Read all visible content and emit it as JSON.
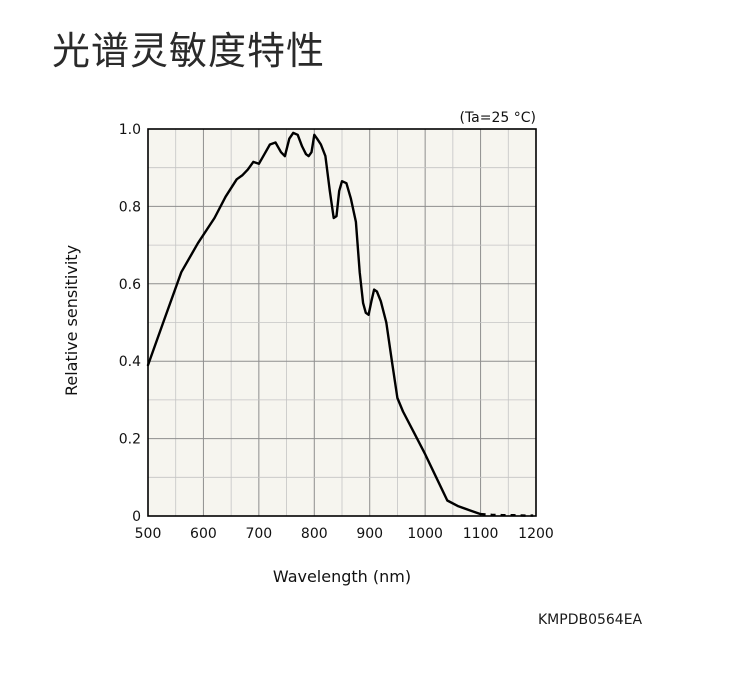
{
  "page": {
    "title": "光谱灵敏度特性",
    "figure_code": "KMPDB0564EA"
  },
  "chart_data": {
    "type": "line",
    "condition_note": "(Ta=25 °C)",
    "xlabel": "Wavelength (nm)",
    "ylabel": "Relative sensitivity",
    "xlim": [
      500,
      1200
    ],
    "ylim": [
      0,
      1.0
    ],
    "x_ticks": [
      500,
      600,
      700,
      800,
      900,
      1000,
      1100,
      1200
    ],
    "x_tick_labels": [
      "500",
      "600",
      "700",
      "800",
      "900",
      "1000",
      "1100",
      "1200"
    ],
    "y_ticks": [
      0,
      0.2,
      0.4,
      0.6,
      0.8,
      1.0
    ],
    "y_tick_labels": [
      "0",
      "0.2",
      "0.4",
      "0.6",
      "0.8",
      "1.0"
    ],
    "grid": true,
    "plot_background": "#f6f5ef",
    "line_color": "#000000",
    "series": [
      {
        "style": "solid",
        "x": [
          500,
          530,
          560,
          590,
          620,
          640,
          660,
          670,
          680,
          690,
          700,
          710,
          720,
          730,
          740,
          747,
          755,
          762,
          770,
          778,
          785,
          790,
          795,
          800,
          805,
          812,
          820,
          828,
          835,
          840,
          845,
          850,
          858,
          866,
          875,
          882,
          888,
          893,
          898,
          903,
          908,
          913,
          920,
          930,
          940,
          950,
          960,
          980,
          1000,
          1020,
          1040,
          1060,
          1080,
          1100
        ],
        "y": [
          0.39,
          0.51,
          0.63,
          0.705,
          0.77,
          0.825,
          0.87,
          0.88,
          0.895,
          0.915,
          0.91,
          0.935,
          0.96,
          0.965,
          0.94,
          0.93,
          0.975,
          0.99,
          0.985,
          0.955,
          0.935,
          0.93,
          0.94,
          0.985,
          0.975,
          0.96,
          0.93,
          0.84,
          0.77,
          0.775,
          0.84,
          0.865,
          0.86,
          0.82,
          0.76,
          0.63,
          0.55,
          0.525,
          0.52,
          0.555,
          0.585,
          0.58,
          0.555,
          0.5,
          0.4,
          0.305,
          0.27,
          0.215,
          0.16,
          0.1,
          0.04,
          0.025,
          0.015,
          0.005
        ]
      },
      {
        "style": "dashed",
        "x": [
          1100,
          1120,
          1140,
          1160,
          1180,
          1195
        ],
        "y": [
          0.005,
          0.003,
          0.002,
          0.002,
          0.001,
          0.001
        ]
      }
    ]
  }
}
